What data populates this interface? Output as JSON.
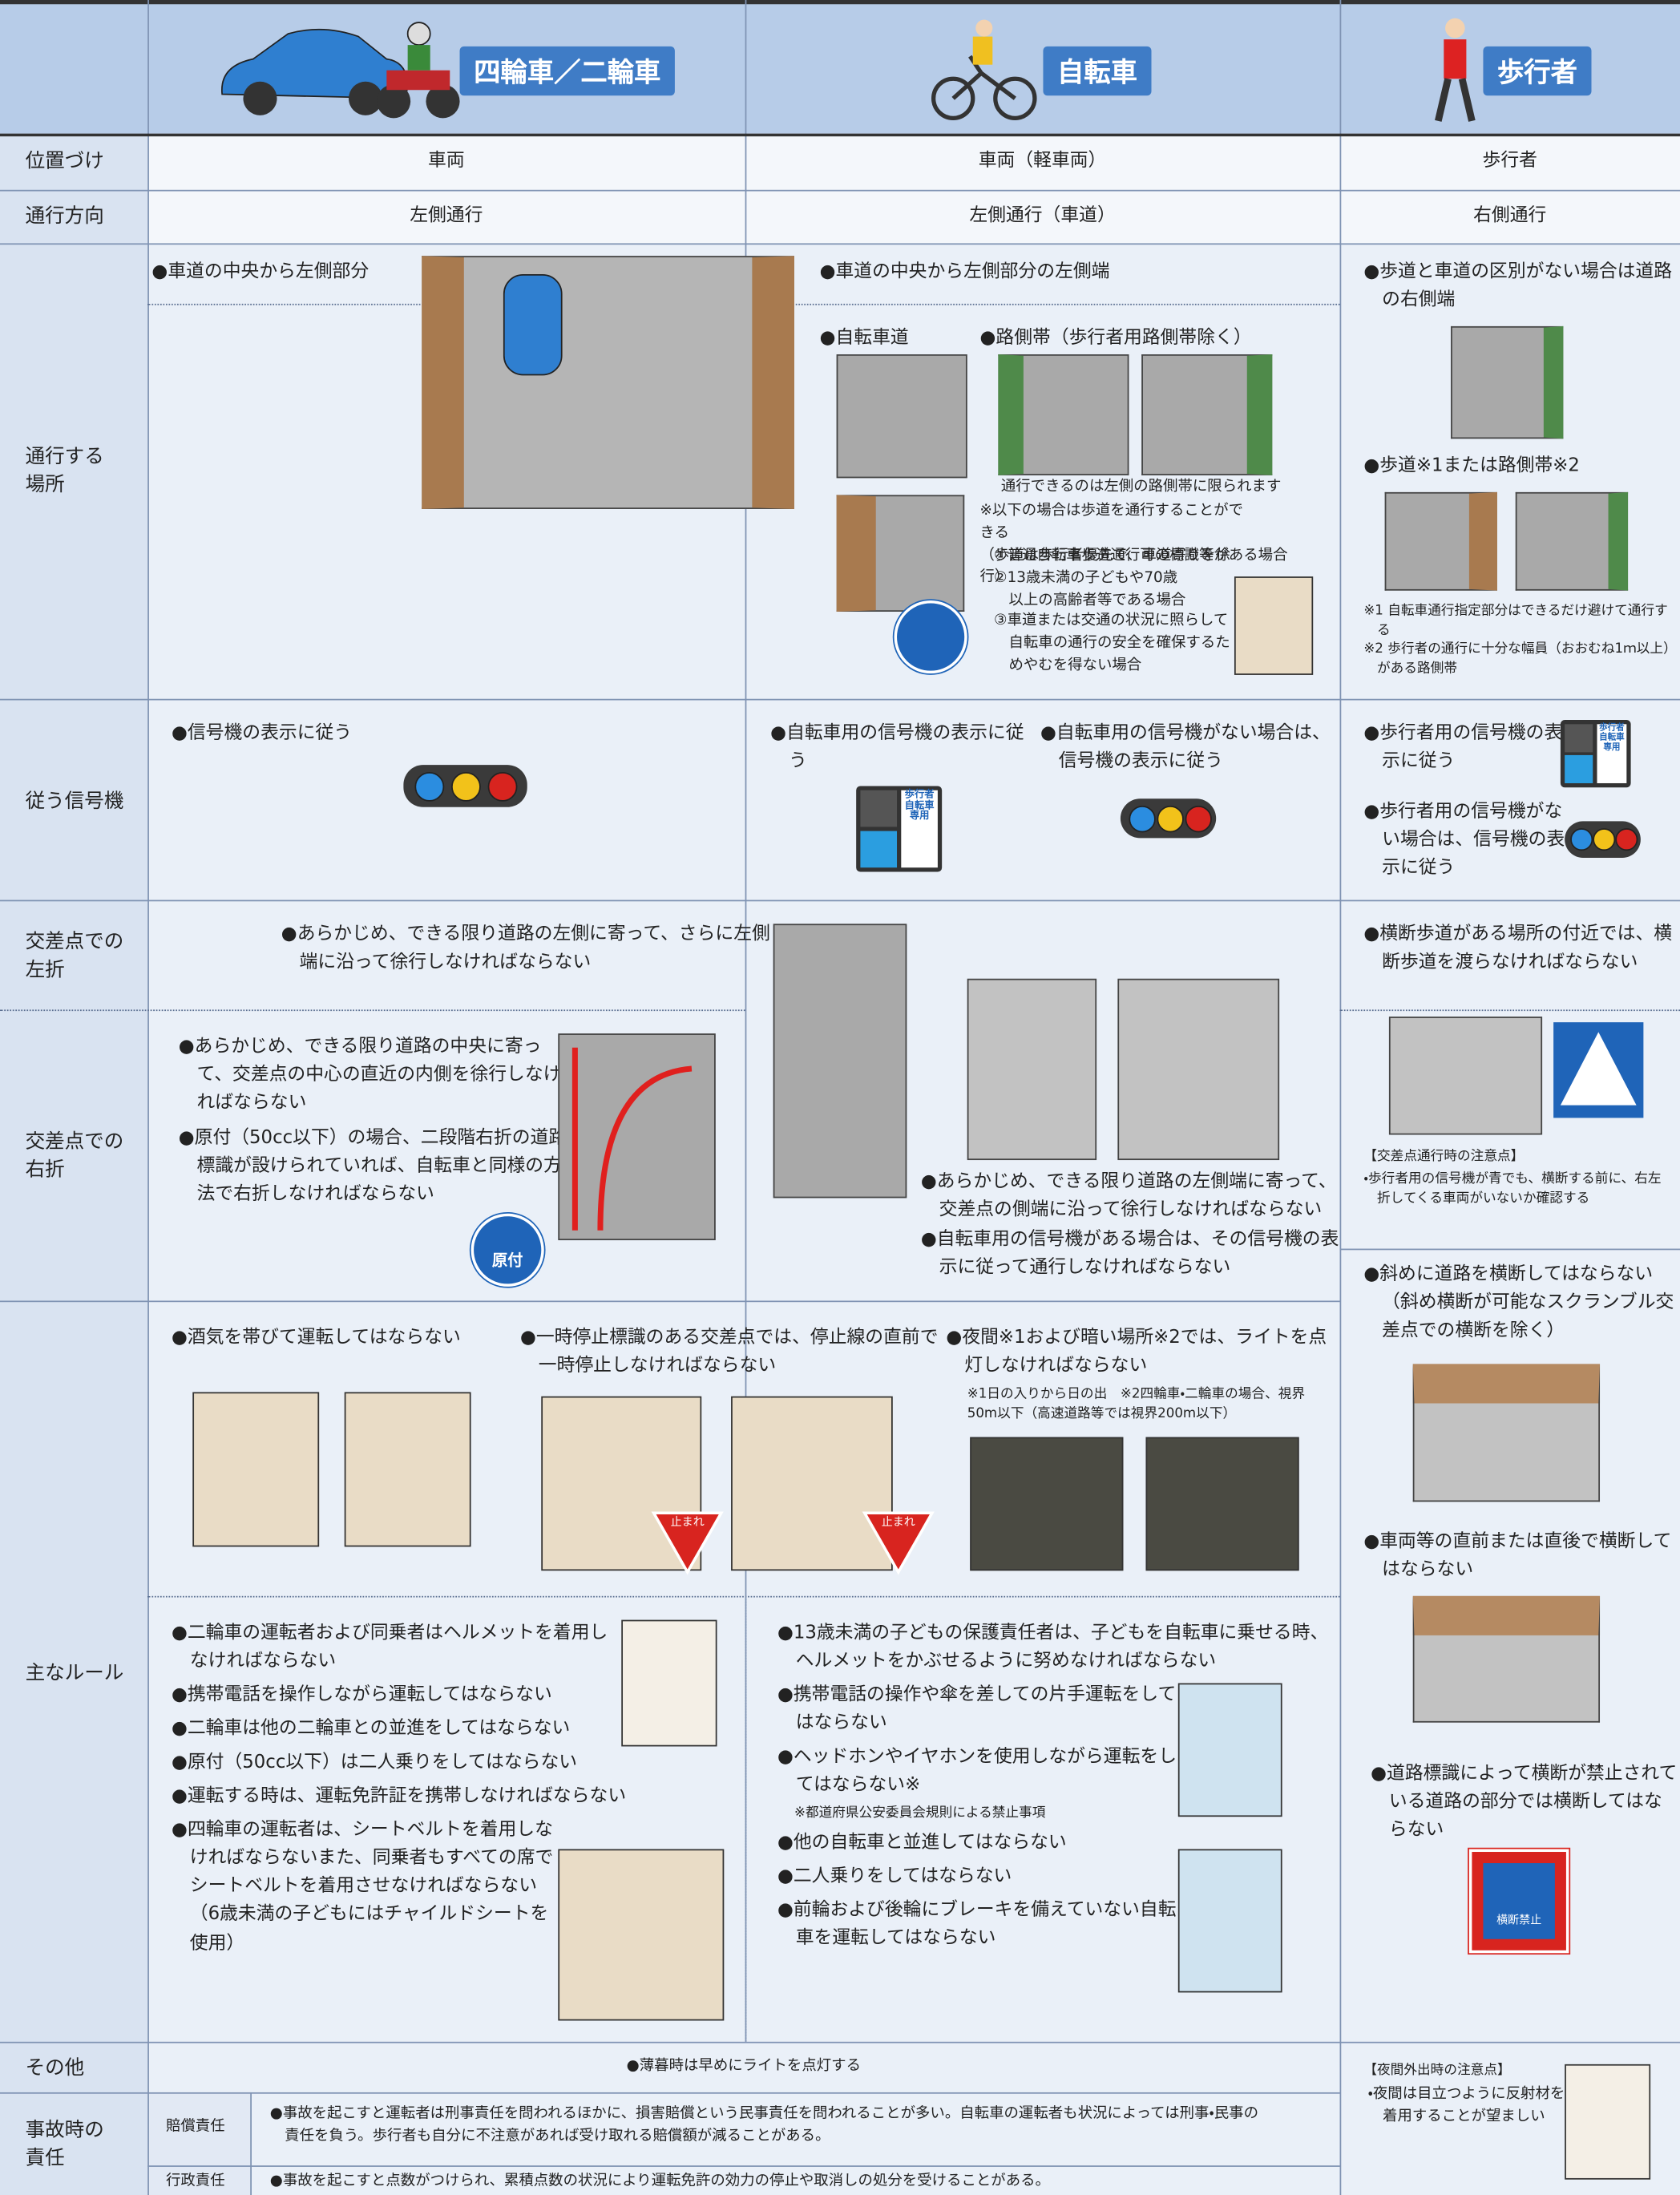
{
  "header": {
    "motor": "四輪車／二輪車",
    "bicycle": "自転車",
    "pedestrian": "歩行者"
  },
  "rows": {
    "position": {
      "label": "位置づけ",
      "motor": "車両",
      "bicycle": "車両（軽車両）",
      "pedestrian": "歩行者"
    },
    "direction": {
      "label": "通行方向",
      "motor": "左側通行",
      "bicycle": "左側通行（車道）",
      "pedestrian": "右側通行"
    },
    "place": {
      "label": "通行する\n場所",
      "motor": "●車道の中央から左側部分",
      "bicycle": {
        "main": "●車道の中央から左側部分の左側端",
        "lane": "●自転車道",
        "roadside": "●路側帯（歩行者用路側帯除く）",
        "roadside_note": "通行できるのは左側の路側帯に限られます",
        "sidewalk_note": "※以下の場合は歩道を通行することができる\n（歩道は歩行者優先で、車道寄りを徐行）",
        "cases": [
          "①普通自転車歩道通行可の標識等がある場合",
          "②13歳未満の子どもや70歳以上の高齢者等である場合",
          "③車道または交通の状況に照らして自転車の通行の安全を確保するためやむを得ない場合"
        ]
      },
      "pedestrian": {
        "no_sidewalk": "●歩道と車道の区別がない場合は道路の右側端",
        "sidewalk": "●歩道※1または路側帯※2",
        "notes": [
          "※1 自転車通行指定部分はできるだけ避けて通行する",
          "※2 歩行者の通行に十分な幅員（おおむね1ｍ以上）がある路側帯"
        ]
      }
    },
    "signal": {
      "label": "従う信号機",
      "motor": "●信号機の表示に従う",
      "bicycle": [
        "●自転車用の信号機の表示に従う",
        "●自転車用の信号機がない場合は、信号機の表示に従う"
      ],
      "sign": "歩行者\n自転車\n専用",
      "pedestrian": [
        "●歩行者用の信号機の表示に従う",
        "●歩行者用の信号機がない場合は、信号機の表示に従う"
      ]
    },
    "left_turn": {
      "label": "交差点での\n左折",
      "motor": "●あらかじめ、できる限り道路の左側に寄って、さらに左側端に沿って徐行しなければならない"
    },
    "right_turn": {
      "label": "交差点での\n右折",
      "motor": [
        "●あらかじめ、できる限り道路の中央に寄って、交差点の中心の直近の内側を徐行しなければならない",
        "●原付（50cc以下）の場合、二段階右折の道路標識が設けられていれば、自転車と同様の方法で右折しなければならない"
      ],
      "sign": "原付"
    },
    "turn_bicycle": [
      "●あらかじめ、できる限り道路の左側端に寄って、交差点の側端に沿って徐行しなければならない",
      "●自転車用の信号機がある場合は、その信号機の表示に従って通行しなければならない"
    ],
    "turn_pedestrian": {
      "rule": "●横断歩道がある場所の付近では、横断歩道を渡らなければならない",
      "caution_title": "【交差点通行時の注意点】",
      "caution": "・歩行者用の信号機が青でも、横断する前に、右左折してくる車両がいないか確認する"
    },
    "rules": {
      "label": "主なルール",
      "drink": "●酒気を帯びて運転してはならない",
      "stop": "●一時停止標識のある交差点では、停止線の直前で一時停止しなければならない",
      "stop_sign": "止まれ",
      "night": "●夜間※1および暗い場所※2では、ライトを点灯しなければならない",
      "night_note": "※1日の入りから日の出　※2四輪車・二輪車の場合、視界50m以下（高速道路等では視界200m以下）",
      "motor": [
        "●二輪車の運転者および同乗者はヘルメットを着用しなければならない",
        "●携帯電話を操作しながら運転してはならない",
        "●二輪車は他の二輪車との並進をしてはならない",
        "●原付（50cc以下）は二人乗りをしてはならない",
        "●運転する時は、運転免許証を携帯しなければならない",
        "●四輪車の運転者は、シートベルトを着用しなければならないまた、同乗者もすべての席でシートベルトを着用させなければならない（6歳未満の子どもにはチャイルドシートを使用）"
      ],
      "bicycle": [
        "●13歳未満の子どもの保護責任者は、子どもを自転車に乗せる時、ヘルメットをかぶせるように努めなければならない",
        "●携帯電話の操作や傘を差しての片手運転をしてはならない",
        "●ヘッドホンやイヤホンを使用しながら運転をしてはならない※",
        "●他の自転車と並進してはならない",
        "●二人乗りをしてはならない",
        "●前輪および後輪にブレーキを備えていない自転車を運転してはならない"
      ],
      "bicycle_note": "※都道府県公安委員会規則による禁止事項",
      "pedestrian": [
        "●斜めに道路を横断してはならない（斜め横断が可能なスクランブル交差点での横断を除く）",
        "●車両等の直前または直後で横断してはならない",
        "●道路標識によって横断が禁止されている道路の部分では横断してはならない"
      ],
      "no_crossing_sign": "横断禁止"
    },
    "other": {
      "label": "その他",
      "text": "●薄暮時は早めにライトを点灯する",
      "pedestrian_title": "【夜間外出時の注意点】",
      "pedestrian_text": "・夜間は目立つように反射材を着用することが望ましい"
    },
    "accident": {
      "label": "事故時の\n責任",
      "civil_label": "賠償責任",
      "civil": "●事故を起こすと運転者は刑事責任を問われるほかに、損害賠償という民事責任を問われることが多い。自転車の運転者も状況によっては刑事・民事の責任を負う。歩行者も自分に不注意があれば受け取れる賠償額が減ることがある。",
      "admin_label": "行政責任",
      "admin": "●事故を起こすと点数がつけられ、累積点数の状況により運転免許の効力の停止や取消しの処分を受けることがある。"
    }
  }
}
